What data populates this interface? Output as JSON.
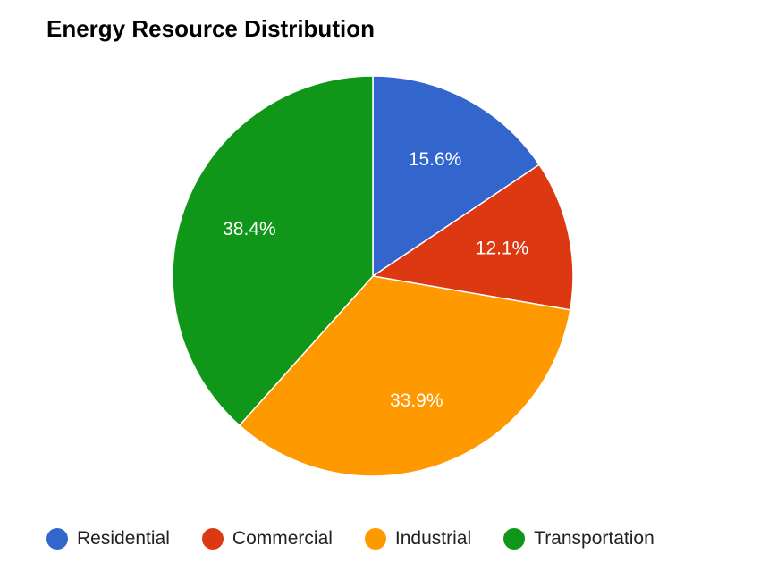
{
  "chart_data": {
    "type": "pie",
    "title": "Energy Resource Distribution",
    "categories": [
      "Residential",
      "Commercial",
      "Industrial",
      "Transportation"
    ],
    "values": [
      15.6,
      12.1,
      33.9,
      38.4
    ],
    "value_labels": [
      "15.6%",
      "12.1%",
      "33.9%",
      "38.4%"
    ],
    "colors": [
      "#3366cc",
      "#dc3912",
      "#ff9900",
      "#109618"
    ],
    "legend": "bottom",
    "start": "top, clockwise"
  }
}
